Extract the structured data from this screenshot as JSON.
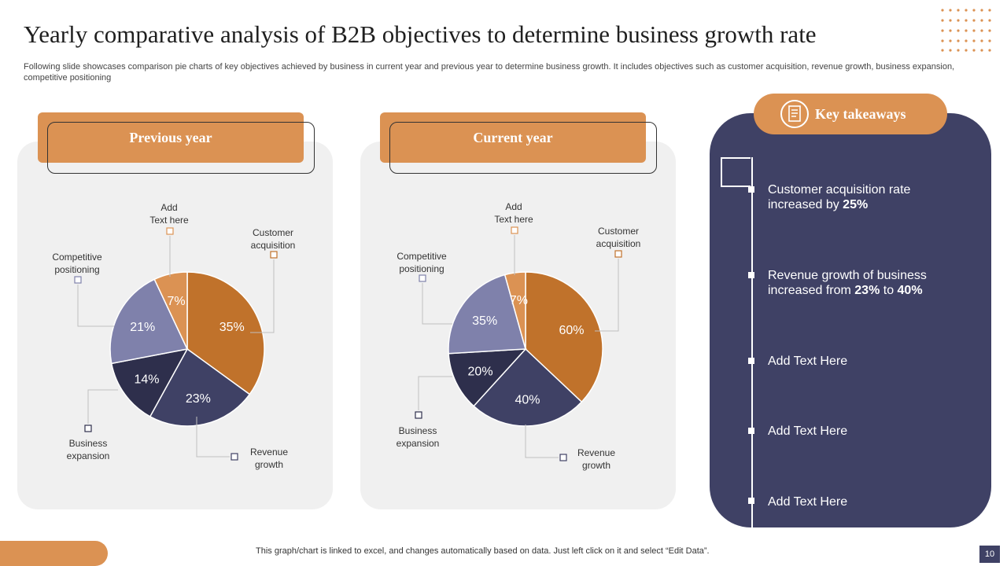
{
  "title": "Yearly comparative analysis of B2B objectives to determine business growth rate",
  "subtitle": "Following slide showcases comparison pie charts of key objectives achieved by business in current year and previous year to determine business growth. It includes objectives such as customer acquisition, revenue growth, business expansion, competitive positioning",
  "colors": {
    "accent_orange": "#db9253",
    "navy": "#3f4165",
    "slice_customer": "#c0722b",
    "slice_revenue": "#3f4165",
    "slice_business": "#2e2f4c",
    "slice_competitive": "#7f81ab",
    "slice_add": "#db9253"
  },
  "chart_data": [
    {
      "type": "pie",
      "title": "Previous year",
      "categories": [
        "Customer acquisition",
        "Revenue growth",
        "Business expansion",
        "Competitive positioning",
        "Add Text here"
      ],
      "values": [
        35,
        23,
        14,
        21,
        7
      ],
      "labels": [
        "35%",
        "23%",
        "14%",
        "21%",
        "7%"
      ],
      "legend": {
        "customer": [
          "Customer",
          "acquisition"
        ],
        "revenue": [
          "Revenue",
          "growth"
        ],
        "business": [
          "Business",
          "expansion"
        ],
        "competitive": [
          "Competitive",
          "positioning"
        ],
        "add": [
          "Add",
          "Text here"
        ]
      }
    },
    {
      "type": "pie",
      "title": "Current year",
      "categories": [
        "Customer acquisition",
        "Revenue growth",
        "Business expansion",
        "Competitive positioning",
        "Add Text here"
      ],
      "values": [
        60,
        40,
        20,
        35,
        7
      ],
      "labels": [
        "60%",
        "40%",
        "20%",
        "35%",
        "7%"
      ],
      "legend": {
        "customer": [
          "Customer",
          "acquisition"
        ],
        "revenue": [
          "Revenue",
          "growth"
        ],
        "business": [
          "Business",
          "expansion"
        ],
        "competitive": [
          "Competitive",
          "positioning"
        ],
        "add": [
          "Add",
          "Text here"
        ]
      }
    }
  ],
  "takeaways": {
    "title": "Key takeaways",
    "items": [
      {
        "pre": "Customer acquisition rate increased by ",
        "b1": "25%",
        "mid": "",
        "b2": ""
      },
      {
        "pre": "Revenue growth of business increased from ",
        "b1": "23%",
        "mid": " to ",
        "b2": "40%"
      },
      {
        "pre": "Add Text Here",
        "b1": "",
        "mid": "",
        "b2": ""
      },
      {
        "pre": "Add Text Here",
        "b1": "",
        "mid": "",
        "b2": ""
      },
      {
        "pre": "Add Text Here",
        "b1": "",
        "mid": "",
        "b2": ""
      }
    ]
  },
  "footer": {
    "note": "This graph/chart is linked to excel,  and changes automatically based on data. Just left click on it and select “Edit Data”.",
    "page": "10"
  }
}
